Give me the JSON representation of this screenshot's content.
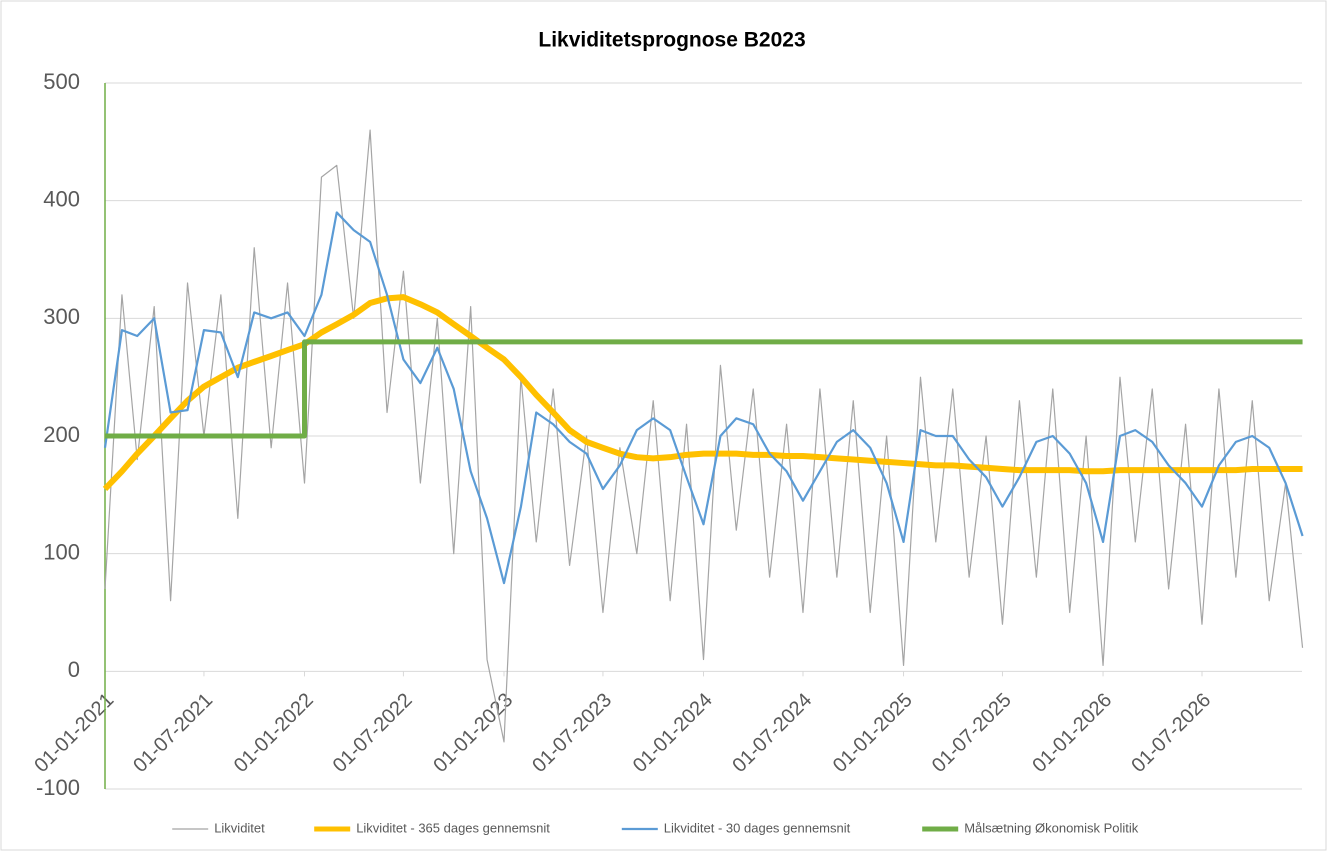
{
  "chart_data": {
    "type": "line",
    "title": "Likviditetsprognose B2023",
    "x": [
      "01-01-2021",
      "01-02-2021",
      "01-03-2021",
      "01-04-2021",
      "01-05-2021",
      "01-06-2021",
      "01-07-2021",
      "01-08-2021",
      "01-09-2021",
      "01-10-2021",
      "01-11-2021",
      "01-12-2021",
      "01-01-2022",
      "01-02-2022",
      "01-03-2022",
      "01-04-2022",
      "01-05-2022",
      "01-06-2022",
      "01-07-2022",
      "01-08-2022",
      "01-09-2022",
      "01-10-2022",
      "01-11-2022",
      "01-12-2022",
      "01-01-2023",
      "01-02-2023",
      "01-03-2023",
      "01-04-2023",
      "01-05-2023",
      "01-06-2023",
      "01-07-2023",
      "01-08-2023",
      "01-09-2023",
      "01-10-2023",
      "01-11-2023",
      "01-12-2023",
      "01-01-2024",
      "01-02-2024",
      "01-03-2024",
      "01-04-2024",
      "01-05-2024",
      "01-06-2024",
      "01-07-2024",
      "01-08-2024",
      "01-09-2024",
      "01-10-2024",
      "01-11-2024",
      "01-12-2024",
      "01-01-2025",
      "01-02-2025",
      "01-03-2025",
      "01-04-2025",
      "01-05-2025",
      "01-06-2025",
      "01-07-2025",
      "01-08-2025",
      "01-09-2025",
      "01-10-2025",
      "01-11-2025",
      "01-12-2025",
      "01-01-2026",
      "01-02-2026",
      "01-03-2026",
      "01-04-2026",
      "01-05-2026",
      "01-06-2026",
      "01-07-2026",
      "01-08-2026",
      "01-09-2026",
      "01-10-2026",
      "01-11-2026",
      "01-12-2026",
      "01-01-2027"
    ],
    "series": [
      {
        "name": "Likviditet",
        "color": "#a5a5a5",
        "width": 1.2,
        "values": [
          70,
          320,
          180,
          310,
          60,
          330,
          200,
          320,
          130,
          360,
          190,
          330,
          160,
          420,
          430,
          300,
          460,
          220,
          340,
          160,
          300,
          100,
          310,
          10,
          -60,
          250,
          110,
          240,
          90,
          200,
          50,
          190,
          100,
          230,
          60,
          210,
          10,
          260,
          120,
          240,
          80,
          210,
          50,
          240,
          80,
          230,
          50,
          200,
          5,
          250,
          110,
          240,
          80,
          200,
          40,
          230,
          80,
          240,
          50,
          200,
          5,
          250,
          110,
          240,
          70,
          210,
          40,
          240,
          80,
          230,
          60,
          160,
          20
        ]
      },
      {
        "name": "Likviditet - 365 dages gennemsnit",
        "color": "#ffc000",
        "width": 6,
        "values": [
          155,
          170,
          185,
          200,
          215,
          230,
          242,
          250,
          258,
          263,
          268,
          273,
          278,
          288,
          295,
          303,
          313,
          317,
          318,
          312,
          305,
          295,
          285,
          275,
          265,
          250,
          235,
          220,
          205,
          195,
          190,
          185,
          182,
          181,
          182,
          184,
          185,
          185,
          185,
          184,
          184,
          183,
          183,
          182,
          181,
          180,
          179,
          178,
          177,
          176,
          175,
          175,
          174,
          173,
          172,
          171,
          171,
          171,
          171,
          170,
          170,
          171,
          171,
          171,
          171,
          171,
          171,
          171,
          171,
          172,
          172,
          172,
          172
        ]
      },
      {
        "name": "Likviditet - 30 dages gennemsnit",
        "color": "#5b9bd5",
        "width": 2.2,
        "values": [
          190,
          290,
          285,
          300,
          220,
          222,
          290,
          288,
          250,
          305,
          300,
          305,
          285,
          320,
          390,
          375,
          365,
          320,
          265,
          245,
          275,
          240,
          170,
          130,
          75,
          140,
          220,
          210,
          195,
          185,
          155,
          175,
          205,
          215,
          205,
          165,
          125,
          200,
          215,
          210,
          185,
          170,
          145,
          170,
          195,
          205,
          190,
          160,
          110,
          205,
          200,
          200,
          180,
          165,
          140,
          165,
          195,
          200,
          185,
          160,
          110,
          200,
          205,
          195,
          175,
          160,
          140,
          175,
          195,
          200,
          190,
          160,
          115
        ]
      },
      {
        "name": "Målsætning Økonomisk Politik",
        "color": "#70ad47",
        "width": 5,
        "step": true,
        "values": [
          200,
          200,
          200,
          200,
          200,
          200,
          200,
          200,
          200,
          200,
          200,
          200,
          280,
          280,
          280,
          280,
          280,
          280,
          280,
          280,
          280,
          280,
          280,
          280,
          280,
          280,
          280,
          280,
          280,
          280,
          280,
          280,
          280,
          280,
          280,
          280,
          280,
          280,
          280,
          280,
          280,
          280,
          280,
          280,
          280,
          280,
          280,
          280,
          280,
          280,
          280,
          280,
          280,
          280,
          280,
          280,
          280,
          280,
          280,
          280,
          280,
          280,
          280,
          280,
          280,
          280,
          280,
          280,
          280,
          280,
          280,
          280,
          280
        ]
      }
    ],
    "xlim": [
      "01-01-2021",
      "31-12-2026"
    ],
    "xticks": [
      "01-01-2021",
      "01-07-2021",
      "01-01-2022",
      "01-07-2022",
      "01-01-2023",
      "01-07-2023",
      "01-01-2024",
      "01-07-2024",
      "01-01-2025",
      "01-07-2025",
      "01-01-2026",
      "01-07-2026"
    ],
    "ylim": [
      -100,
      500
    ],
    "yticks": [
      -100,
      0,
      100,
      200,
      300,
      400,
      500
    ],
    "grid": true,
    "legend": "bottom"
  }
}
